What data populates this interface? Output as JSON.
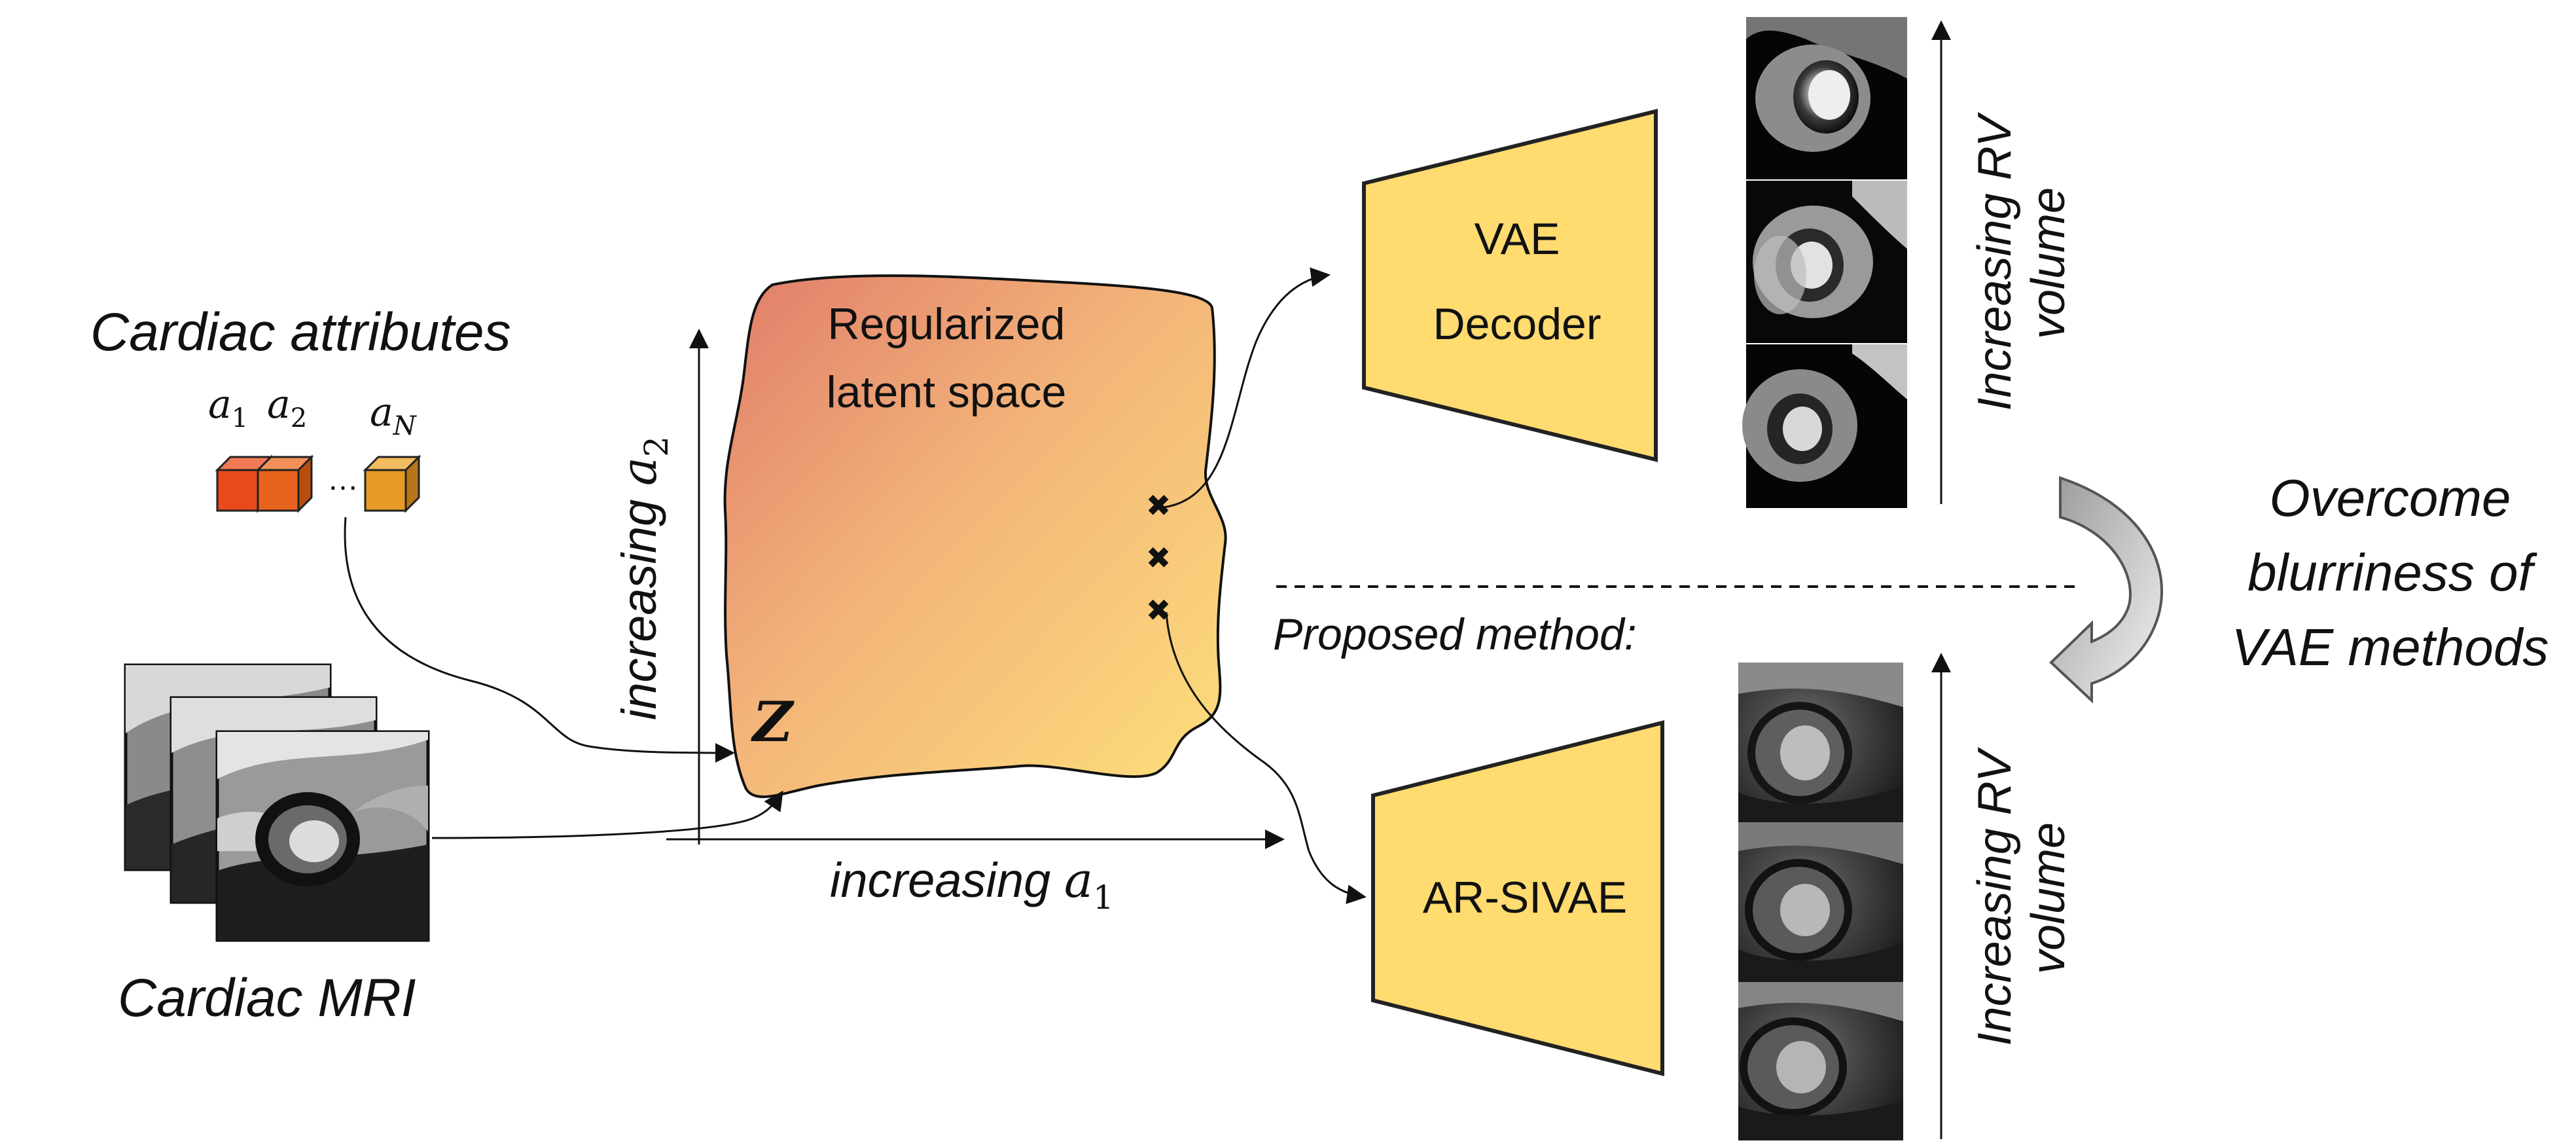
{
  "inputs": {
    "attributes_title": "Cardiac attributes",
    "attr_labels": [
      {
        "base": "a",
        "sub": "1"
      },
      {
        "base": "a",
        "sub": "2"
      },
      {
        "base": "a",
        "sub": "N"
      }
    ],
    "ellipsis": "…",
    "mri_label": "Cardiac MRI"
  },
  "latent": {
    "title_line1": "Regularized",
    "title_line2": "latent space",
    "z_label": "Z",
    "sample_marker": "✖",
    "x_axis": {
      "text": "increasing ",
      "base": "a",
      "sub": "1"
    },
    "y_axis": {
      "text": "increasing ",
      "base": "a",
      "sub": "2"
    }
  },
  "decoders": {
    "vae_line1": "VAE",
    "vae_line2": "Decoder",
    "ar": "AR-SIVAE"
  },
  "outputs": {
    "axis_label_line1": "Increasing RV",
    "axis_label_line2": "volume"
  },
  "proposed_label": "Proposed method:",
  "overcome": {
    "line1": "Overcome",
    "line2": "blurriness of",
    "line3": "VAE methods"
  },
  "colors": {
    "attr_box_1": "#e84a1d",
    "attr_box_2": "#e8641d",
    "attr_box_n": "#e89a28",
    "latent_gradient_start": "#e07d6a",
    "latent_gradient_end": "#fde07a",
    "decoder_fill": "#ffdb70",
    "outline": "#222222"
  }
}
